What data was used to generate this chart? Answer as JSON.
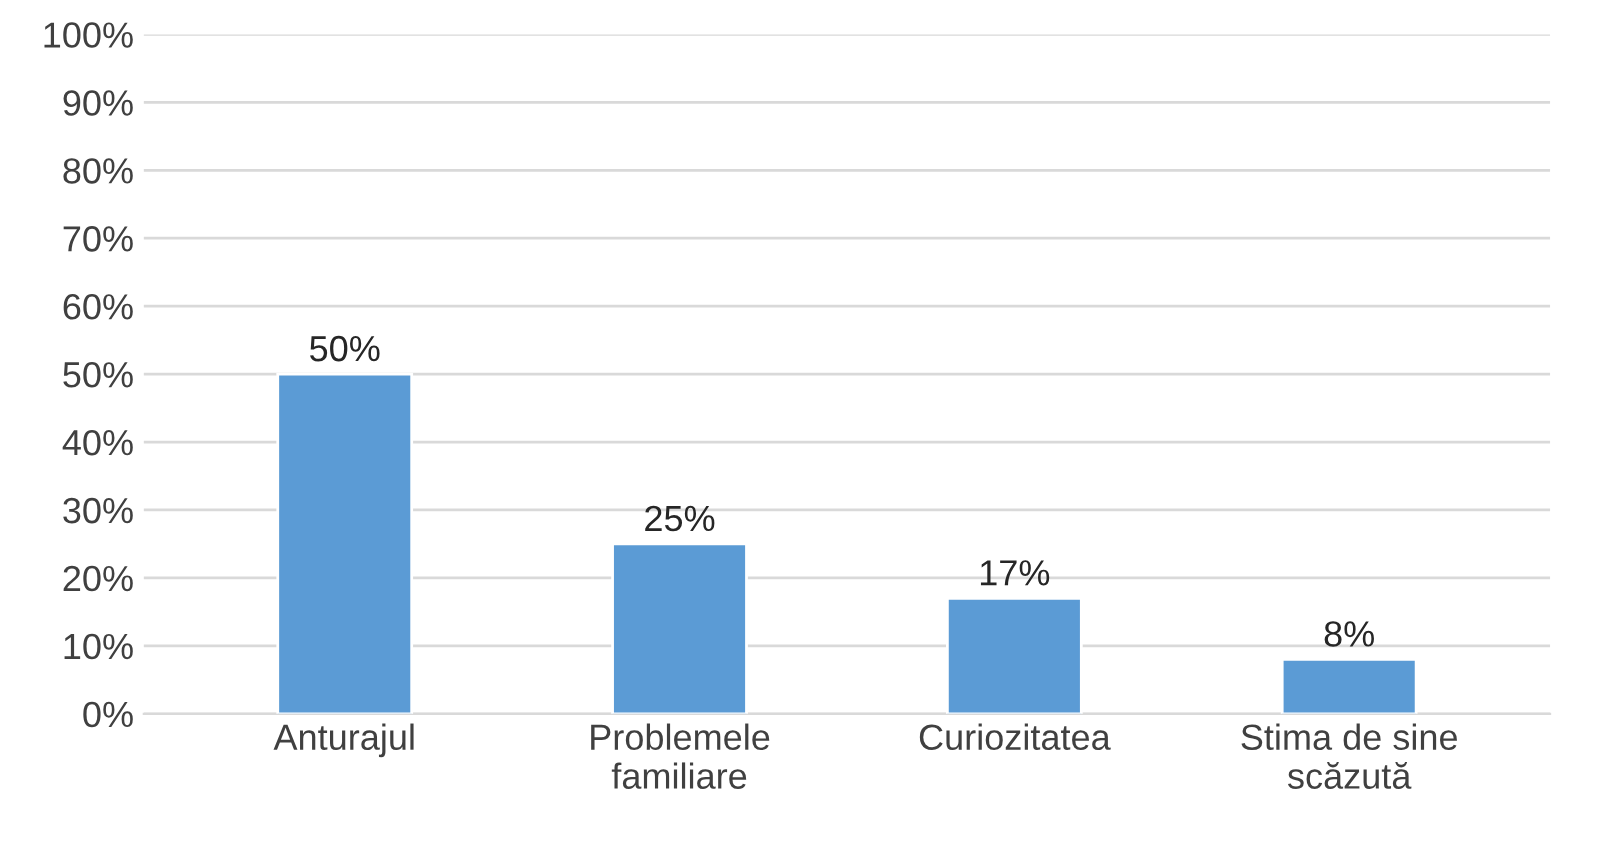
{
  "chart_data": {
    "type": "bar",
    "categories": [
      "Anturajul",
      "Problemele\nfamiliare",
      "Curiozitatea",
      "Stima de sine\nscăzută"
    ],
    "values": [
      50,
      25,
      17,
      8
    ],
    "value_labels": [
      "50%",
      "25%",
      "17%",
      "8%"
    ],
    "color": "#5b9bd5",
    "ylim": [
      0,
      100
    ],
    "yticks": [
      {
        "value": 0,
        "label": "0%"
      },
      {
        "value": 10,
        "label": "10%"
      },
      {
        "value": 20,
        "label": "20%"
      },
      {
        "value": 30,
        "label": "30%"
      },
      {
        "value": 40,
        "label": "40%"
      },
      {
        "value": 50,
        "label": "50%"
      },
      {
        "value": 60,
        "label": "60%"
      },
      {
        "value": 70,
        "label": "70%"
      },
      {
        "value": 80,
        "label": "80%"
      },
      {
        "value": 90,
        "label": "90%"
      },
      {
        "value": 100,
        "label": "100%"
      }
    ],
    "grid": "y"
  }
}
